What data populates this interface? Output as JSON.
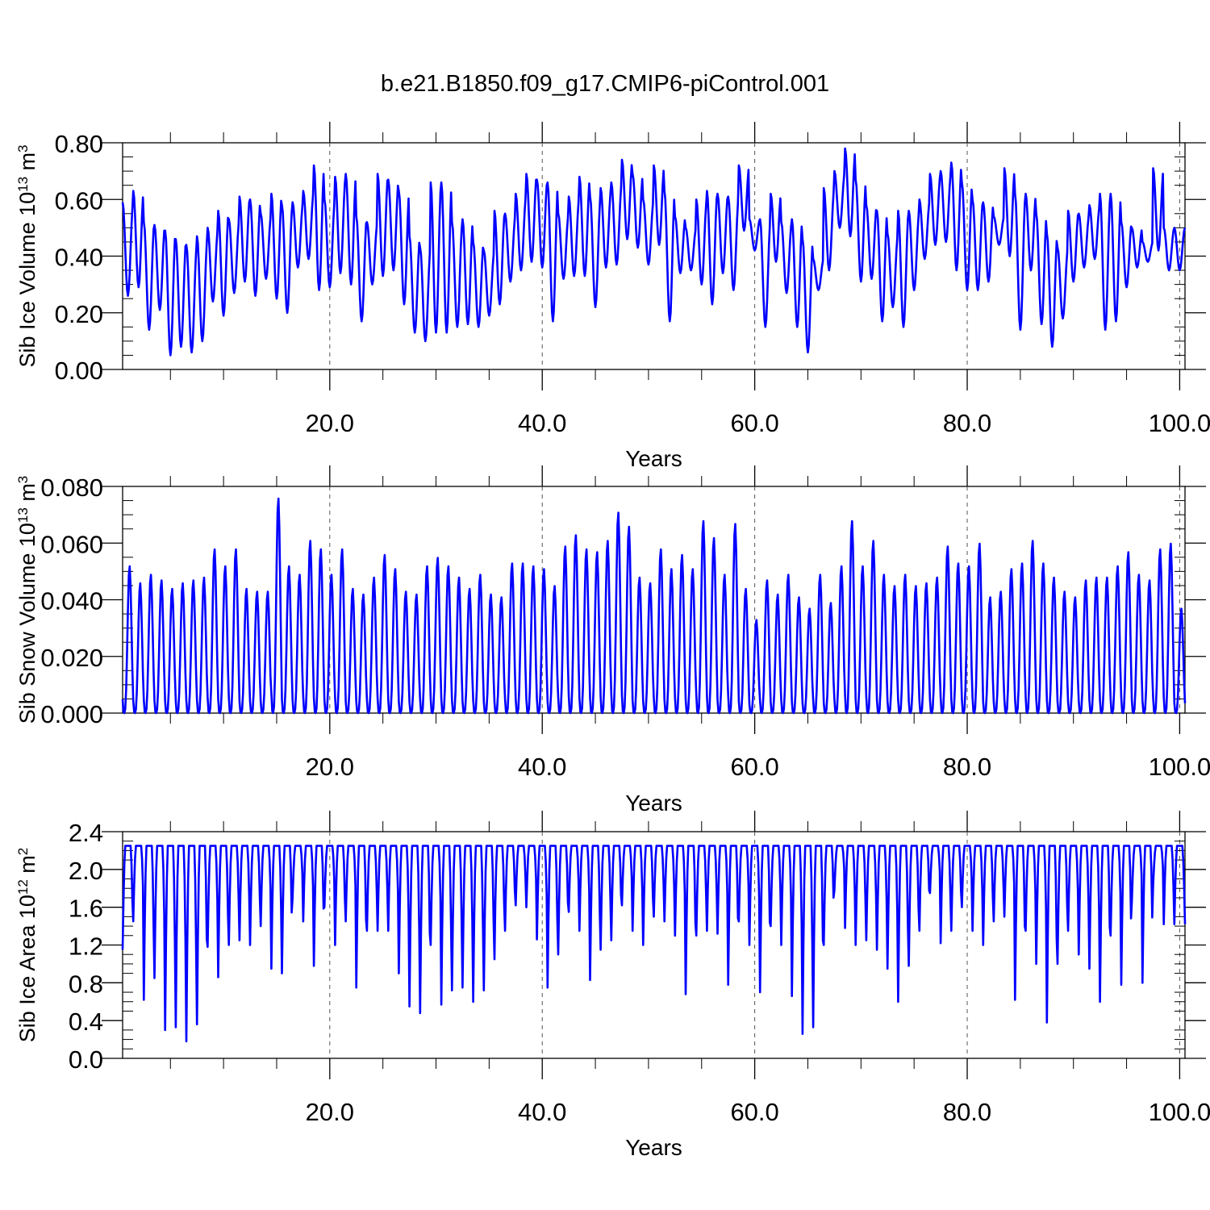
{
  "figure": {
    "title": "b.e21.B1850.f09_g17.CMIP6-piControl.001"
  },
  "chart_data": [
    {
      "type": "line",
      "ylabel": "Sib Ice Volume 10",
      "ylabel_exp": "13",
      "ylabel_unit": " m",
      "ylabel_unit_exp": "3",
      "xlabel": "Years",
      "xlim": [
        0.5,
        100.5
      ],
      "ylim": [
        0.0,
        0.8
      ],
      "x_ticks": [
        20,
        40,
        60,
        80,
        100
      ],
      "x_tick_labels": [
        "20.0",
        "40.0",
        "60.0",
        "80.0",
        "100.0"
      ],
      "y_ticks": [
        0.0,
        0.2,
        0.4,
        0.6,
        0.8
      ],
      "y_tick_labels": [
        "0.00",
        "0.20",
        "0.40",
        "0.60",
        "0.80"
      ],
      "grid": "vertical dashed at major x ticks",
      "color": "#0000ff",
      "annual_max": [
        0.59,
        0.63,
        0.52,
        0.51,
        0.49,
        0.46,
        0.44,
        0.47,
        0.5,
        0.56,
        0.53,
        0.61,
        0.6,
        0.55,
        0.62,
        0.58,
        0.59,
        0.63,
        0.72,
        0.6,
        0.68,
        0.69,
        0.54,
        0.52,
        0.69,
        0.67,
        0.63,
        0.47,
        0.43,
        0.66,
        0.66,
        0.52,
        0.53,
        0.45,
        0.42,
        0.56,
        0.55,
        0.62,
        0.69,
        0.67,
        0.66,
        0.55,
        0.61,
        0.68,
        0.61,
        0.64,
        0.66,
        0.74,
        0.69,
        0.6,
        0.72,
        0.63,
        0.54,
        0.5,
        0.6,
        0.63,
        0.62,
        0.61,
        0.72,
        0.53,
        0.53,
        0.62,
        0.52,
        0.53,
        0.46,
        0.39,
        0.64,
        0.7,
        0.78,
        0.67,
        0.58,
        0.56,
        0.48,
        0.56,
        0.56,
        0.6,
        0.69,
        0.7,
        0.73,
        0.66,
        0.6,
        0.59,
        0.54,
        0.71,
        0.62,
        0.62,
        0.55,
        0.48,
        0.43,
        0.56,
        0.55,
        0.58,
        0.62,
        0.62,
        0.52,
        0.5,
        0.45,
        0.71,
        0.5
      ],
      "annual_min": [
        0.26,
        0.29,
        0.14,
        0.21,
        0.05,
        0.08,
        0.06,
        0.1,
        0.24,
        0.19,
        0.27,
        0.31,
        0.26,
        0.32,
        0.25,
        0.2,
        0.36,
        0.39,
        0.28,
        0.29,
        0.34,
        0.3,
        0.17,
        0.3,
        0.33,
        0.35,
        0.23,
        0.13,
        0.1,
        0.13,
        0.13,
        0.15,
        0.16,
        0.15,
        0.19,
        0.23,
        0.31,
        0.35,
        0.38,
        0.36,
        0.17,
        0.32,
        0.33,
        0.33,
        0.22,
        0.36,
        0.37,
        0.46,
        0.43,
        0.37,
        0.44,
        0.17,
        0.34,
        0.35,
        0.3,
        0.23,
        0.34,
        0.28,
        0.49,
        0.42,
        0.15,
        0.38,
        0.27,
        0.15,
        0.06,
        0.28,
        0.35,
        0.5,
        0.47,
        0.31,
        0.32,
        0.17,
        0.22,
        0.15,
        0.28,
        0.39,
        0.44,
        0.45,
        0.35,
        0.28,
        0.28,
        0.31,
        0.44,
        0.4,
        0.14,
        0.35,
        0.16,
        0.08,
        0.18,
        0.31,
        0.36,
        0.39,
        0.14,
        0.17,
        0.29,
        0.36,
        0.38,
        0.42,
        0.35
      ]
    },
    {
      "type": "line",
      "ylabel": "Sib Snow Volume 10",
      "ylabel_exp": "13",
      "ylabel_unit": " m",
      "ylabel_unit_exp": "3",
      "xlabel": "Years",
      "xlim": [
        0.5,
        100.5
      ],
      "ylim": [
        0.0,
        0.08
      ],
      "x_ticks": [
        20,
        40,
        60,
        80,
        100
      ],
      "x_tick_labels": [
        "20.0",
        "40.0",
        "60.0",
        "80.0",
        "100.0"
      ],
      "y_ticks": [
        0.0,
        0.02,
        0.04,
        0.06,
        0.08
      ],
      "y_tick_labels": [
        "0.000",
        "0.020",
        "0.040",
        "0.060",
        "0.080"
      ],
      "grid": "vertical dashed at major x ticks",
      "color": "#0000ff",
      "annual_max": [
        0.052,
        0.046,
        0.049,
        0.047,
        0.044,
        0.046,
        0.047,
        0.048,
        0.058,
        0.052,
        0.058,
        0.044,
        0.043,
        0.043,
        0.076,
        0.052,
        0.049,
        0.061,
        0.058,
        0.049,
        0.058,
        0.044,
        0.042,
        0.048,
        0.056,
        0.051,
        0.043,
        0.042,
        0.052,
        0.055,
        0.052,
        0.048,
        0.044,
        0.049,
        0.042,
        0.041,
        0.053,
        0.053,
        0.052,
        0.051,
        0.045,
        0.059,
        0.063,
        0.058,
        0.057,
        0.061,
        0.071,
        0.066,
        0.048,
        0.046,
        0.058,
        0.051,
        0.056,
        0.051,
        0.068,
        0.062,
        0.049,
        0.067,
        0.044,
        0.033,
        0.047,
        0.042,
        0.049,
        0.041,
        0.037,
        0.049,
        0.039,
        0.052,
        0.068,
        0.052,
        0.061,
        0.049,
        0.045,
        0.049,
        0.045,
        0.046,
        0.048,
        0.059,
        0.053,
        0.052,
        0.06,
        0.041,
        0.043,
        0.051,
        0.053,
        0.061,
        0.053,
        0.048,
        0.043,
        0.041,
        0.047,
        0.048,
        0.048,
        0.052,
        0.057,
        0.049,
        0.047,
        0.058,
        0.06,
        0.037
      ],
      "annual_min": 0.0
    },
    {
      "type": "line",
      "ylabel": "Sib Ice Area 10",
      "ylabel_exp": "12",
      "ylabel_unit": " m",
      "ylabel_unit_exp": "2",
      "xlabel": "Years",
      "xlim": [
        0.5,
        100.5
      ],
      "ylim": [
        0.0,
        2.4
      ],
      "x_ticks": [
        20,
        40,
        60,
        80,
        100
      ],
      "x_tick_labels": [
        "20.0",
        "40.0",
        "60.0",
        "80.0",
        "100.0"
      ],
      "y_ticks": [
        0.0,
        0.4,
        0.8,
        1.2,
        1.6,
        2.0,
        2.4
      ],
      "y_tick_labels": [
        "0.0",
        "0.4",
        "0.8",
        "1.2",
        "1.6",
        "2.0",
        "2.4"
      ],
      "grid": "vertical dashed at major x ticks",
      "color": "#0000ff",
      "annual_max": 2.25,
      "annual_min": [
        1.15,
        1.45,
        0.62,
        0.85,
        0.3,
        0.33,
        0.18,
        0.36,
        1.18,
        0.86,
        1.2,
        1.25,
        1.2,
        1.4,
        0.95,
        0.9,
        1.7,
        1.45,
        0.98,
        1.6,
        1.2,
        1.45,
        0.75,
        1.35,
        1.35,
        1.35,
        0.9,
        0.55,
        0.48,
        1.2,
        0.57,
        0.72,
        0.75,
        0.6,
        0.72,
        1.05,
        1.35,
        1.62,
        1.6,
        1.26,
        0.75,
        1.1,
        1.55,
        1.35,
        0.83,
        1.15,
        1.25,
        1.62,
        1.35,
        1.2,
        1.5,
        1.45,
        1.3,
        0.68,
        1.3,
        1.35,
        1.32,
        0.78,
        1.45,
        1.2,
        0.7,
        1.4,
        1.2,
        0.66,
        0.26,
        0.33,
        1.2,
        1.78,
        1.38,
        1.2,
        1.25,
        1.15,
        0.95,
        0.6,
        0.98,
        1.35,
        1.75,
        1.22,
        1.35,
        1.6,
        1.35,
        1.2,
        1.45,
        1.5,
        0.62,
        1.35,
        1.0,
        0.38,
        1.0,
        1.35,
        1.1,
        0.95,
        0.6,
        1.3,
        0.78,
        1.65,
        0.8,
        1.83,
        1.42,
        1.42
      ]
    }
  ]
}
